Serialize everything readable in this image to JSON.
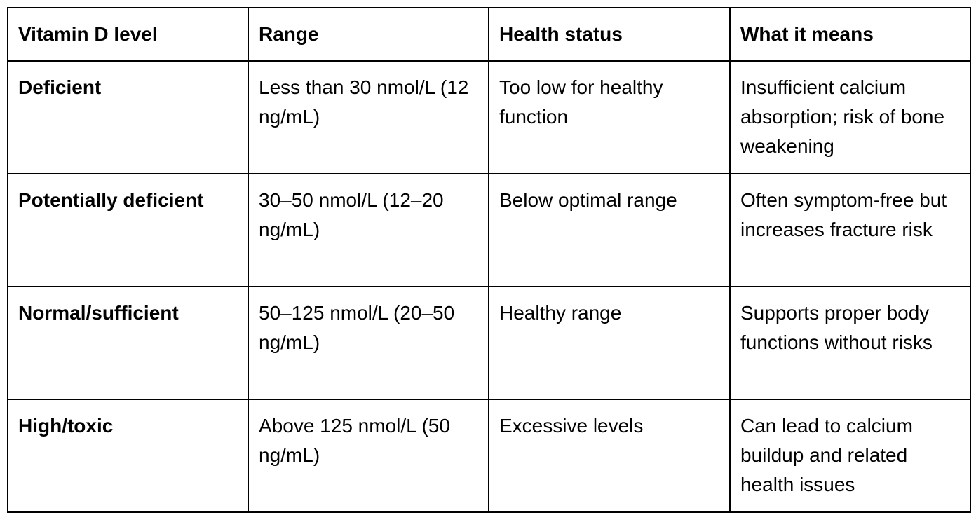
{
  "table": {
    "headers": [
      "Vitamin D level",
      "Range",
      "Health status",
      "What it means"
    ],
    "rows": [
      {
        "level": "Deficient",
        "range": "Less than 30 nmol/L (12 ng/mL)",
        "status": "Too low for healthy function",
        "meaning": "Insufficient calcium absorption; risk of bone weakening"
      },
      {
        "level": "Potentially deficient",
        "range": "30–50 nmol/L (12–20 ng/mL)",
        "status": "Below optimal range",
        "meaning": "Often symptom-free but increases fracture risk"
      },
      {
        "level": "Normal/sufficient",
        "range": "50–125 nmol/L (20–50 ng/mL)",
        "status": "Healthy range",
        "meaning": "Supports proper body functions without risks"
      },
      {
        "level": "High/toxic",
        "range": "Above 125 nmol/L (50 ng/mL)",
        "status": "Excessive levels",
        "meaning": "Can lead to calcium buildup and related health issues"
      }
    ]
  }
}
